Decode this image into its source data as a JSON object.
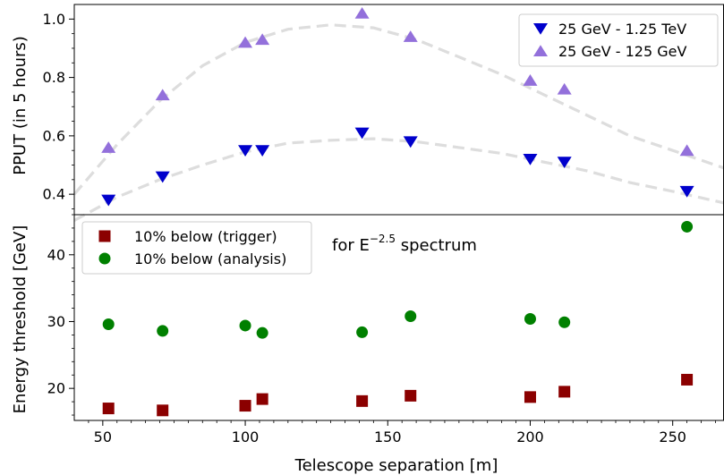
{
  "chart_data": [
    {
      "type": "scatter",
      "panel": "top",
      "ylabel": "PPUT (in 5 hours)",
      "xlim": [
        40,
        268
      ],
      "ylim": [
        0.33,
        1.05
      ],
      "yticks": [
        0.4,
        0.6,
        0.8,
        1.0
      ],
      "yticklabels": [
        "0.4",
        "0.6",
        "0.8",
        "1.0"
      ],
      "legend_placement": "top-right",
      "series": [
        {
          "name": "25 GeV - 1.25 TeV",
          "marker": "triangle-down",
          "color": "#0000cc",
          "x": [
            52,
            71,
            100,
            106,
            141,
            158,
            200,
            212,
            255
          ],
          "y": [
            0.38,
            0.46,
            0.55,
            0.55,
            0.61,
            0.58,
            0.52,
            0.51,
            0.41
          ]
        },
        {
          "name": "25 GeV - 125 GeV",
          "marker": "triangle-up",
          "color": "#9370db",
          "x": [
            52,
            71,
            100,
            106,
            141,
            158,
            200,
            212,
            255
          ],
          "y": [
            0.56,
            0.74,
            0.92,
            0.93,
            1.02,
            0.94,
            0.79,
            0.76,
            0.55
          ]
        }
      ],
      "fit_curves": [
        {
          "color": "#dddddd",
          "style": "dashed",
          "x": [
            40,
            55,
            70,
            85,
            100,
            115,
            130,
            145,
            160,
            175,
            190,
            205,
            220,
            235,
            250,
            268
          ],
          "y": [
            0.31,
            0.39,
            0.45,
            0.5,
            0.545,
            0.575,
            0.585,
            0.59,
            0.58,
            0.56,
            0.54,
            0.51,
            0.48,
            0.44,
            0.41,
            0.37
          ]
        },
        {
          "color": "#dddddd",
          "style": "dashed",
          "x": [
            40,
            55,
            70,
            85,
            100,
            115,
            130,
            145,
            160,
            175,
            190,
            205,
            220,
            235,
            250,
            268
          ],
          "y": [
            0.4,
            0.57,
            0.72,
            0.84,
            0.92,
            0.965,
            0.98,
            0.97,
            0.93,
            0.87,
            0.81,
            0.74,
            0.67,
            0.6,
            0.55,
            0.49
          ]
        }
      ]
    },
    {
      "type": "scatter",
      "panel": "bottom",
      "xlabel": "Telescope separation [m]",
      "ylabel": "Energy threshold [GeV]",
      "xlim": [
        40,
        268
      ],
      "ylim": [
        15.2,
        46
      ],
      "xticks": [
        50,
        100,
        150,
        200,
        250
      ],
      "xticklabels": [
        "50",
        "100",
        "150",
        "200",
        "250"
      ],
      "yticks": [
        20,
        30,
        40
      ],
      "yticklabels": [
        "20",
        "30",
        "40"
      ],
      "legend_placement": "top-left",
      "annotation": {
        "base": "for E",
        "superscript": "−2.5",
        "suffix": " spectrum"
      },
      "series": [
        {
          "name": "10% below (trigger)",
          "marker": "square",
          "color": "#8b0000",
          "x": [
            52,
            71,
            100,
            106,
            141,
            158,
            200,
            212,
            255
          ],
          "y": [
            17.0,
            16.7,
            17.4,
            18.4,
            18.1,
            18.9,
            18.7,
            19.5,
            21.3
          ]
        },
        {
          "name": "10% below (analysis)",
          "marker": "circle",
          "color": "#008000",
          "x": [
            52,
            71,
            100,
            106,
            141,
            158,
            200,
            212,
            255
          ],
          "y": [
            29.6,
            28.6,
            29.4,
            28.3,
            28.4,
            30.8,
            30.4,
            29.9,
            44.2
          ]
        }
      ]
    }
  ]
}
